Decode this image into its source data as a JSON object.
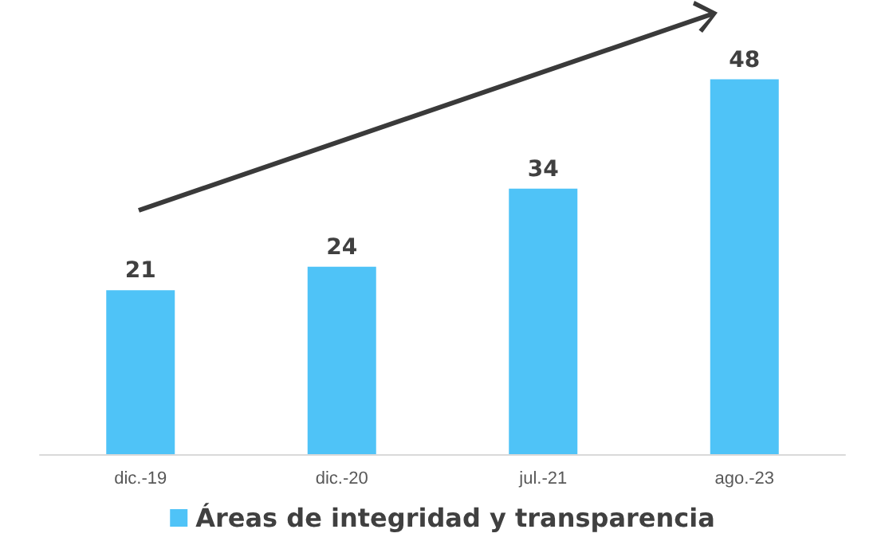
{
  "chart_data": {
    "type": "bar",
    "categories": [
      "dic.-19",
      "dic.-20",
      "jul.-21",
      "ago.-23"
    ],
    "series": [
      {
        "name": "Áreas de integridad y transparencia",
        "color": "#4fc3f7",
        "values": [
          21,
          24,
          34,
          48
        ]
      }
    ],
    "data_labels": true,
    "legend": "bottom",
    "grid": false
  }
}
